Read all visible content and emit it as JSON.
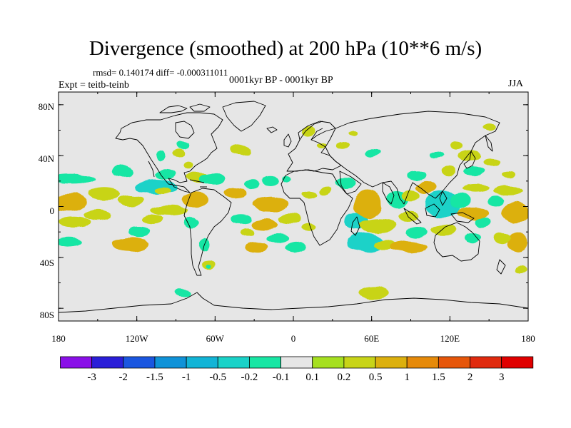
{
  "title": "Divergence (smoothed) at 200 hPa (10**6 m/s)",
  "stats": "rmsd= 0.140174  diff= -0.000311011",
  "period": "0001kyr BP - 0001kyr BP",
  "experiment": "Expt = teitb-teinb",
  "season": "JJA",
  "y_axis_labels": [
    "80N",
    "40N",
    "0",
    "40S",
    "80S"
  ],
  "x_axis_labels": [
    "180",
    "120W",
    "60W",
    "0",
    "60E",
    "120E",
    "180"
  ],
  "colorbar": {
    "labels": [
      "-3",
      "-2",
      "-1.5",
      "-1",
      "-0.5",
      "-0.2",
      "-0.1",
      "0.1",
      "0.2",
      "0.5",
      "1",
      "1.5",
      "2",
      "3"
    ],
    "colors": [
      "#8a10e8",
      "#2a1ed8",
      "#1a56e0",
      "#0f92d8",
      "#12b4d6",
      "#1ad2c8",
      "#18e6a4",
      "#e6e6e6",
      "#a6e020",
      "#c8d418",
      "#dcb00e",
      "#e68a0a",
      "#e6560a",
      "#e02a0e",
      "#e00000"
    ]
  },
  "colors": {
    "land_sea_background": "#e6e6e6",
    "coastline": "#000000"
  },
  "field": [
    {
      "lon": -170,
      "lat": 22,
      "v": -0.2,
      "rx": 18,
      "ry": 4
    },
    {
      "lon": -172,
      "lat": 3,
      "v": 0.5,
      "rx": 14,
      "ry": 7
    },
    {
      "lon": -168,
      "lat": -12,
      "v": 0.2,
      "rx": 12,
      "ry": 4
    },
    {
      "lon": -172,
      "lat": -28,
      "v": -0.2,
      "rx": 10,
      "ry": 4
    },
    {
      "lon": -145,
      "lat": 10,
      "v": 0.2,
      "rx": 12,
      "ry": 5
    },
    {
      "lon": -150,
      "lat": -7,
      "v": 0.2,
      "rx": 10,
      "ry": 4
    },
    {
      "lon": -130,
      "lat": 28,
      "v": -0.2,
      "rx": 8,
      "ry": 5
    },
    {
      "lon": -125,
      "lat": 5,
      "v": 0.2,
      "rx": 10,
      "ry": 4
    },
    {
      "lon": -125,
      "lat": -30,
      "v": 0.5,
      "rx": 14,
      "ry": 6
    },
    {
      "lon": -118,
      "lat": -20,
      "v": -0.2,
      "rx": 8,
      "ry": 4
    },
    {
      "lon": -105,
      "lat": 15,
      "v": -0.5,
      "rx": 16,
      "ry": 6
    },
    {
      "lon": -98,
      "lat": 25,
      "v": -0.2,
      "rx": 8,
      "ry": 4
    },
    {
      "lon": -95,
      "lat": -3,
      "v": 0.2,
      "rx": 14,
      "ry": 4
    },
    {
      "lon": -108,
      "lat": -10,
      "v": 0.2,
      "rx": 8,
      "ry": 4
    },
    {
      "lon": -102,
      "lat": 40,
      "v": -0.2,
      "rx": 4,
      "ry": 4
    },
    {
      "lon": -88,
      "lat": 42,
      "v": 0.2,
      "rx": 5,
      "ry": 3
    },
    {
      "lon": -85,
      "lat": 48,
      "v": -0.2,
      "rx": 5,
      "ry": 3
    },
    {
      "lon": -75,
      "lat": 5,
      "v": 0.5,
      "rx": 10,
      "ry": 6
    },
    {
      "lon": -78,
      "lat": -12,
      "v": -0.2,
      "rx": 6,
      "ry": 4
    },
    {
      "lon": -72,
      "lat": 23,
      "v": 0.2,
      "rx": 10,
      "ry": 4
    },
    {
      "lon": -80,
      "lat": 32,
      "v": 0.2,
      "rx": 4,
      "ry": 3
    },
    {
      "lon": -100,
      "lat": 12,
      "v": 0.2,
      "rx": 6,
      "ry": 3
    },
    {
      "lon": -62,
      "lat": 22,
      "v": -0.2,
      "rx": 10,
      "ry": 5
    },
    {
      "lon": -68,
      "lat": -30,
      "v": -0.2,
      "rx": 4,
      "ry": 5
    },
    {
      "lon": -65,
      "lat": -46,
      "v": 0.2,
      "rx": 5,
      "ry": 4
    },
    {
      "lon": -65,
      "lat": -47,
      "v": -0.2,
      "rx": 2,
      "ry": 2
    },
    {
      "lon": -85,
      "lat": -68,
      "v": -0.2,
      "rx": 6,
      "ry": 3
    },
    {
      "lon": -45,
      "lat": 10,
      "v": 0.5,
      "rx": 8,
      "ry": 4
    },
    {
      "lon": -40,
      "lat": -10,
      "v": -0.2,
      "rx": 8,
      "ry": 4
    },
    {
      "lon": -32,
      "lat": 17,
      "v": -0.2,
      "rx": 6,
      "ry": 4
    },
    {
      "lon": -40,
      "lat": 44,
      "v": 0.2,
      "rx": 8,
      "ry": 4
    },
    {
      "lon": -35,
      "lat": -20,
      "v": 0.2,
      "rx": 5,
      "ry": 3
    },
    {
      "lon": -28,
      "lat": -32,
      "v": 0.5,
      "rx": 9,
      "ry": 4
    },
    {
      "lon": -18,
      "lat": 2,
      "v": 0.5,
      "rx": 14,
      "ry": 6
    },
    {
      "lon": -22,
      "lat": -14,
      "v": 0.5,
      "rx": 10,
      "ry": 4
    },
    {
      "lon": -18,
      "lat": 20,
      "v": -0.2,
      "rx": 6,
      "ry": 4
    },
    {
      "lon": -12,
      "lat": -25,
      "v": -0.2,
      "rx": 8,
      "ry": 4
    },
    {
      "lon": -3,
      "lat": -10,
      "v": 0.2,
      "rx": 8,
      "ry": 4
    },
    {
      "lon": 2,
      "lat": -32,
      "v": -0.2,
      "rx": 8,
      "ry": 4
    },
    {
      "lon": -5,
      "lat": 22,
      "v": -0.2,
      "rx": 4,
      "ry": 3
    },
    {
      "lon": 12,
      "lat": 58,
      "v": 0.2,
      "rx": 5,
      "ry": 4
    },
    {
      "lon": 12,
      "lat": -16,
      "v": 0.2,
      "rx": 6,
      "ry": 3
    },
    {
      "lon": 22,
      "lat": 48,
      "v": 0.2,
      "rx": 4,
      "ry": 2
    },
    {
      "lon": 12,
      "lat": 10,
      "v": 0.2,
      "rx": 6,
      "ry": 3
    },
    {
      "lon": 25,
      "lat": 12,
      "v": 0.2,
      "rx": 5,
      "ry": 3
    },
    {
      "lon": 40,
      "lat": 18,
      "v": -0.2,
      "rx": 8,
      "ry": 4
    },
    {
      "lon": 38,
      "lat": 48,
      "v": 0.2,
      "rx": 5,
      "ry": 3
    },
    {
      "lon": 45,
      "lat": 58,
      "v": 0.2,
      "rx": 4,
      "ry": 2
    },
    {
      "lon": 60,
      "lat": 42,
      "v": -0.2,
      "rx": 6,
      "ry": 3
    },
    {
      "lon": 48,
      "lat": -12,
      "v": -0.5,
      "rx": 9,
      "ry": 6
    },
    {
      "lon": 57,
      "lat": 2,
      "v": 0.5,
      "rx": 10,
      "ry": 12
    },
    {
      "lon": 55,
      "lat": -28,
      "v": -0.5,
      "rx": 14,
      "ry": 8
    },
    {
      "lon": 65,
      "lat": -15,
      "v": 0.2,
      "rx": 14,
      "ry": 5
    },
    {
      "lon": 70,
      "lat": -30,
      "v": 0.2,
      "rx": 9,
      "ry": 4
    },
    {
      "lon": 80,
      "lat": 5,
      "v": -0.2,
      "rx": 8,
      "ry": 6
    },
    {
      "lon": 90,
      "lat": 8,
      "v": 0.2,
      "rx": 7,
      "ry": 4
    },
    {
      "lon": 88,
      "lat": -8,
      "v": 0.2,
      "rx": 8,
      "ry": 4
    },
    {
      "lon": 88,
      "lat": -32,
      "v": 0.5,
      "rx": 14,
      "ry": 5
    },
    {
      "lon": 95,
      "lat": -20,
      "v": -0.2,
      "rx": 8,
      "ry": 4
    },
    {
      "lon": 95,
      "lat": 25,
      "v": -0.2,
      "rx": 7,
      "ry": 4
    },
    {
      "lon": 102,
      "lat": 15,
      "v": 0.5,
      "rx": 8,
      "ry": 5
    },
    {
      "lon": 115,
      "lat": 2,
      "v": -0.5,
      "rx": 14,
      "ry": 10
    },
    {
      "lon": 128,
      "lat": 5,
      "v": -0.2,
      "rx": 8,
      "ry": 6
    },
    {
      "lon": 115,
      "lat": -18,
      "v": 0.2,
      "rx": 10,
      "ry": 4
    },
    {
      "lon": 110,
      "lat": 40,
      "v": -0.2,
      "rx": 5,
      "ry": 3
    },
    {
      "lon": 120,
      "lat": 28,
      "v": 0.2,
      "rx": 5,
      "ry": 4
    },
    {
      "lon": 125,
      "lat": 48,
      "v": 0.2,
      "rx": 5,
      "ry": 3
    },
    {
      "lon": 135,
      "lat": 40,
      "v": 0.2,
      "rx": 9,
      "ry": 4
    },
    {
      "lon": 138,
      "lat": 28,
      "v": -0.2,
      "rx": 8,
      "ry": 4
    },
    {
      "lon": 140,
      "lat": 15,
      "v": 0.2,
      "rx": 10,
      "ry": 3
    },
    {
      "lon": 138,
      "lat": -5,
      "v": 0.5,
      "rx": 12,
      "ry": 5
    },
    {
      "lon": 138,
      "lat": -25,
      "v": -0.2,
      "rx": 7,
      "ry": 4
    },
    {
      "lon": 145,
      "lat": -12,
      "v": -0.2,
      "rx": 6,
      "ry": 4
    },
    {
      "lon": 150,
      "lat": 62,
      "v": 0.2,
      "rx": 5,
      "ry": 3
    },
    {
      "lon": 152,
      "lat": 35,
      "v": 0.2,
      "rx": 6,
      "ry": 3
    },
    {
      "lon": 155,
      "lat": 4,
      "v": -0.2,
      "rx": 6,
      "ry": 4
    },
    {
      "lon": 165,
      "lat": 12,
      "v": 0.2,
      "rx": 12,
      "ry": 4
    },
    {
      "lon": 170,
      "lat": -5,
      "v": 0.5,
      "rx": 10,
      "ry": 8
    },
    {
      "lon": 172,
      "lat": -28,
      "v": 0.5,
      "rx": 8,
      "ry": 8
    },
    {
      "lon": 160,
      "lat": -25,
      "v": 0.2,
      "rx": 6,
      "ry": 4
    },
    {
      "lon": 165,
      "lat": 25,
      "v": 0.2,
      "rx": 6,
      "ry": 3
    },
    {
      "lon": 62,
      "lat": -68,
      "v": 0.2,
      "rx": 12,
      "ry": 5
    },
    {
      "lon": 175,
      "lat": -50,
      "v": 0.2,
      "rx": 4,
      "ry": 3
    }
  ]
}
